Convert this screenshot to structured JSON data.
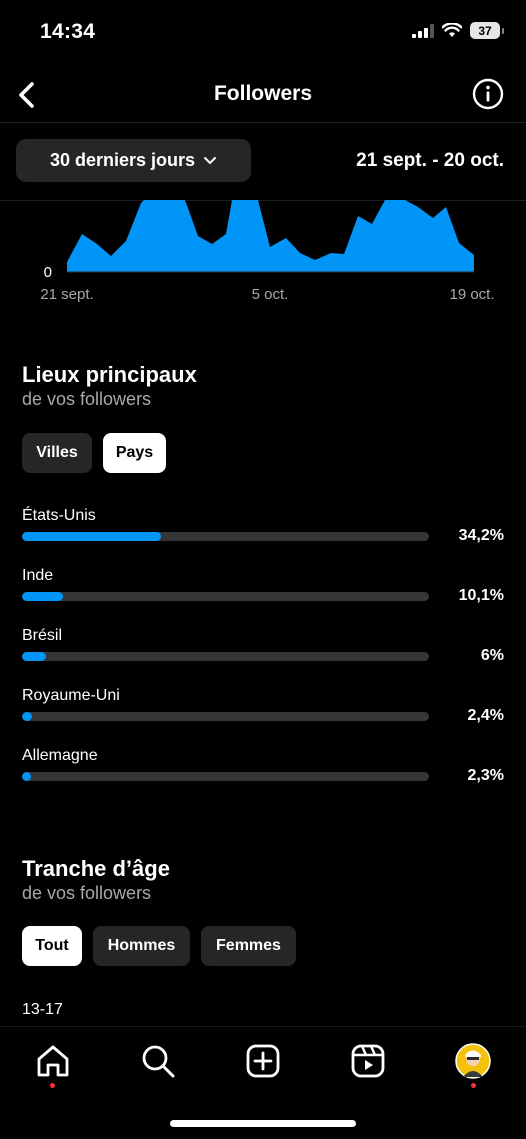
{
  "status_bar": {
    "time": "14:34",
    "battery": "37"
  },
  "header": {
    "title": "Followers"
  },
  "range": {
    "selector_label": "30 derniers jours",
    "dates": "21 sept. - 20 oct."
  },
  "chart_data": {
    "type": "area",
    "x_ticks": [
      "21 sept.",
      "5 oct.",
      "19 oct."
    ],
    "y_tick": "0",
    "color": "#0095f6"
  },
  "locations": {
    "title": "Lieux principaux",
    "subtitle": "de vos followers",
    "tabs": [
      {
        "label": "Villes",
        "active": false
      },
      {
        "label": "Pays",
        "active": true
      }
    ],
    "items": [
      {
        "label": "États-Unis",
        "value": "34,2%",
        "fraction": 0.342
      },
      {
        "label": "Inde",
        "value": "10,1%",
        "fraction": 0.101
      },
      {
        "label": "Brésil",
        "value": "6%",
        "fraction": 0.06
      },
      {
        "label": "Royaume-Uni",
        "value": "2,4%",
        "fraction": 0.024
      },
      {
        "label": "Allemagne",
        "value": "2,3%",
        "fraction": 0.023
      }
    ]
  },
  "age": {
    "title": "Tranche d’âge",
    "subtitle": "de vos followers",
    "tabs": [
      {
        "label": "Tout",
        "active": true
      },
      {
        "label": "Hommes",
        "active": false
      },
      {
        "label": "Femmes",
        "active": false
      }
    ],
    "first_row_label": "13-17"
  },
  "colors": {
    "accent": "#0095f6",
    "notification": "#ff3040"
  }
}
